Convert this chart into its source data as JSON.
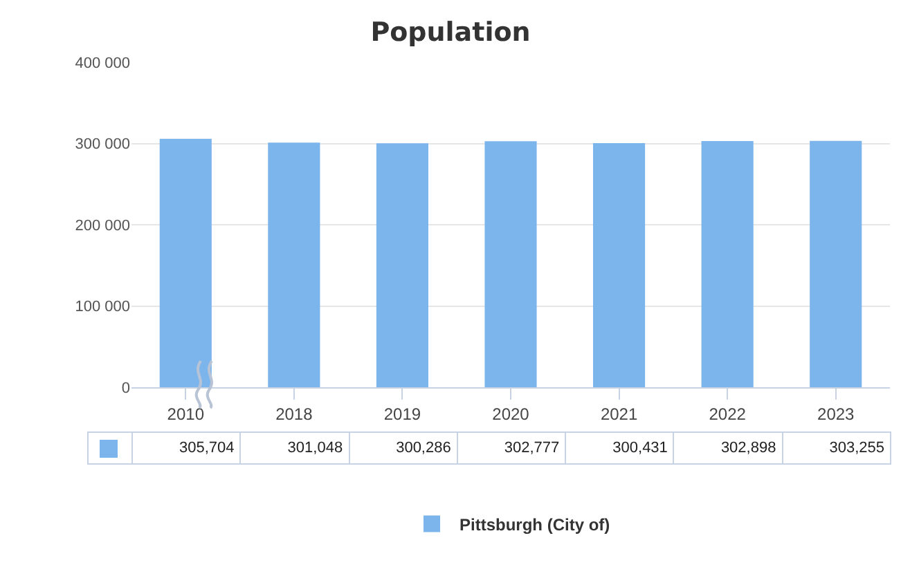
{
  "chart_data": {
    "type": "bar",
    "title": "Population",
    "categories": [
      "2010",
      "2018",
      "2019",
      "2020",
      "2021",
      "2022",
      "2023"
    ],
    "series": [
      {
        "name": "Pittsburgh (City of)",
        "color": "#7cb5ec",
        "values": [
          305704,
          301048,
          300286,
          302777,
          300431,
          302898,
          303255
        ],
        "value_labels": [
          "305,704",
          "301,048",
          "300,286",
          "302,777",
          "300,431",
          "302,898",
          "303,255"
        ]
      }
    ],
    "ylim": [
      0,
      400000
    ],
    "yticks": [
      {
        "value": 0,
        "label": "0"
      },
      {
        "value": 100000,
        "label": "100 000"
      },
      {
        "value": 200000,
        "label": "200 000"
      },
      {
        "value": 300000,
        "label": "300 000"
      },
      {
        "value": 400000,
        "label": "400 000"
      }
    ],
    "grid": "y",
    "legend": "bottom"
  }
}
